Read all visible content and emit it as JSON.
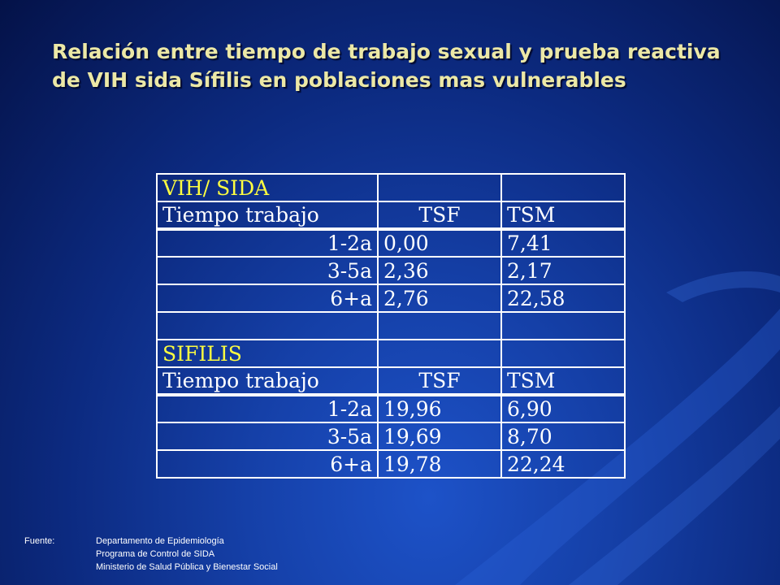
{
  "title": "Relación entre tiempo de trabajo sexual y prueba reactiva de VIH sida Sífilis en poblaciones mas vulnerables",
  "table": {
    "rows": [
      {
        "c1": "VIH/ SIDA",
        "c2": "",
        "c3": ""
      },
      {
        "c1": "Tiempo trabajo",
        "c2": "TSF",
        "c3": "TSM"
      },
      {
        "c1": "1-2a",
        "c2": "0,00",
        "c3": "7,41"
      },
      {
        "c1": "3-5a",
        "c2": "2,36",
        "c3": "2,17"
      },
      {
        "c1": "6+a",
        "c2": "2,76",
        "c3": "22,58"
      },
      {
        "c1": "",
        "c2": "",
        "c3": ""
      },
      {
        "c1": "SIFILIS",
        "c2": "",
        "c3": ""
      },
      {
        "c1": "Tiempo trabajo",
        "c2": "TSF",
        "c3": "TSM"
      },
      {
        "c1": "1-2a",
        "c2": "19,96",
        "c3": "6,90"
      },
      {
        "c1": "3-5a",
        "c2": "19,69",
        "c3": "8,70"
      },
      {
        "c1": "6+a",
        "c2": "19,78",
        "c3": "22,24"
      }
    ]
  },
  "footer": {
    "label": "Fuente:",
    "lines": [
      "Departamento de Epidemiología",
      "Programa de Control  de SIDA",
      "Ministerio de Salud Pública y Bienestar Social"
    ]
  },
  "colors": {
    "title": "#ece8a6",
    "section_heading": "#ffff40",
    "text": "#ffffff",
    "background": "#1540a8"
  }
}
